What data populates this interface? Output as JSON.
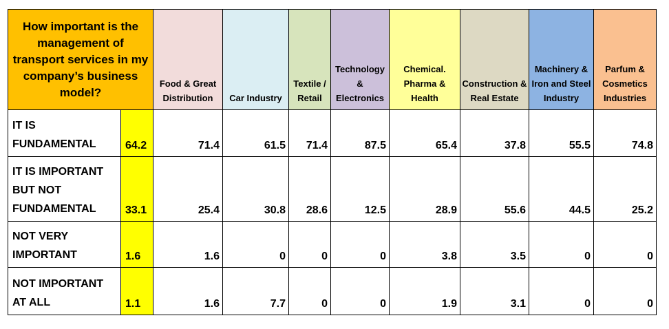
{
  "table": {
    "corner_title": "How important is the management of transport services in my company’s business model?",
    "columns": [
      {
        "label": "Food & Great Distribution",
        "color": "#f2dcdb"
      },
      {
        "label": "Car Industry",
        "color": "#dbeef3"
      },
      {
        "label": "Textile / Retail",
        "color": "#d7e4bc"
      },
      {
        "label": "Technology & Electronics",
        "color": "#ccc0da"
      },
      {
        "label": "Chemical. Pharma & Health",
        "color": "#ffff99"
      },
      {
        "label": "Construction & Real Estate",
        "color": "#ddd9c3"
      },
      {
        "label": "Machinery & Iron and Steel Industry",
        "color": "#8db3e2"
      },
      {
        "label": "Parfum & Cosmetics Industries",
        "color": "#fac090"
      }
    ],
    "rows": [
      {
        "label": "IT IS FUNDAMENTAL",
        "total": "64.2",
        "values": [
          "71.4",
          "61.5",
          "71.4",
          "87.5",
          "65.4",
          "37.8",
          "55.5",
          "74.8"
        ]
      },
      {
        "label": "IT IS IMPORTANT BUT NOT FUNDAMENTAL",
        "total": "33.1",
        "values": [
          "25.4",
          "30.8",
          "28.6",
          "12.5",
          "28.9",
          "55.6",
          "44.5",
          "25.2"
        ]
      },
      {
        "label": "NOT VERY IMPORTANT",
        "total": "1.6",
        "values": [
          "1.6",
          "0",
          "0",
          "0",
          "3.8",
          "3.5",
          "0",
          "0"
        ]
      },
      {
        "label": "NOT IMPORTANT AT ALL",
        "total": "1.1",
        "values": [
          "1.6",
          "7.7",
          "0",
          "0",
          "1.9",
          "3.1",
          "0",
          "0"
        ]
      }
    ],
    "colors": {
      "corner": "#ffc000",
      "total_highlight": "#ffff00"
    }
  }
}
